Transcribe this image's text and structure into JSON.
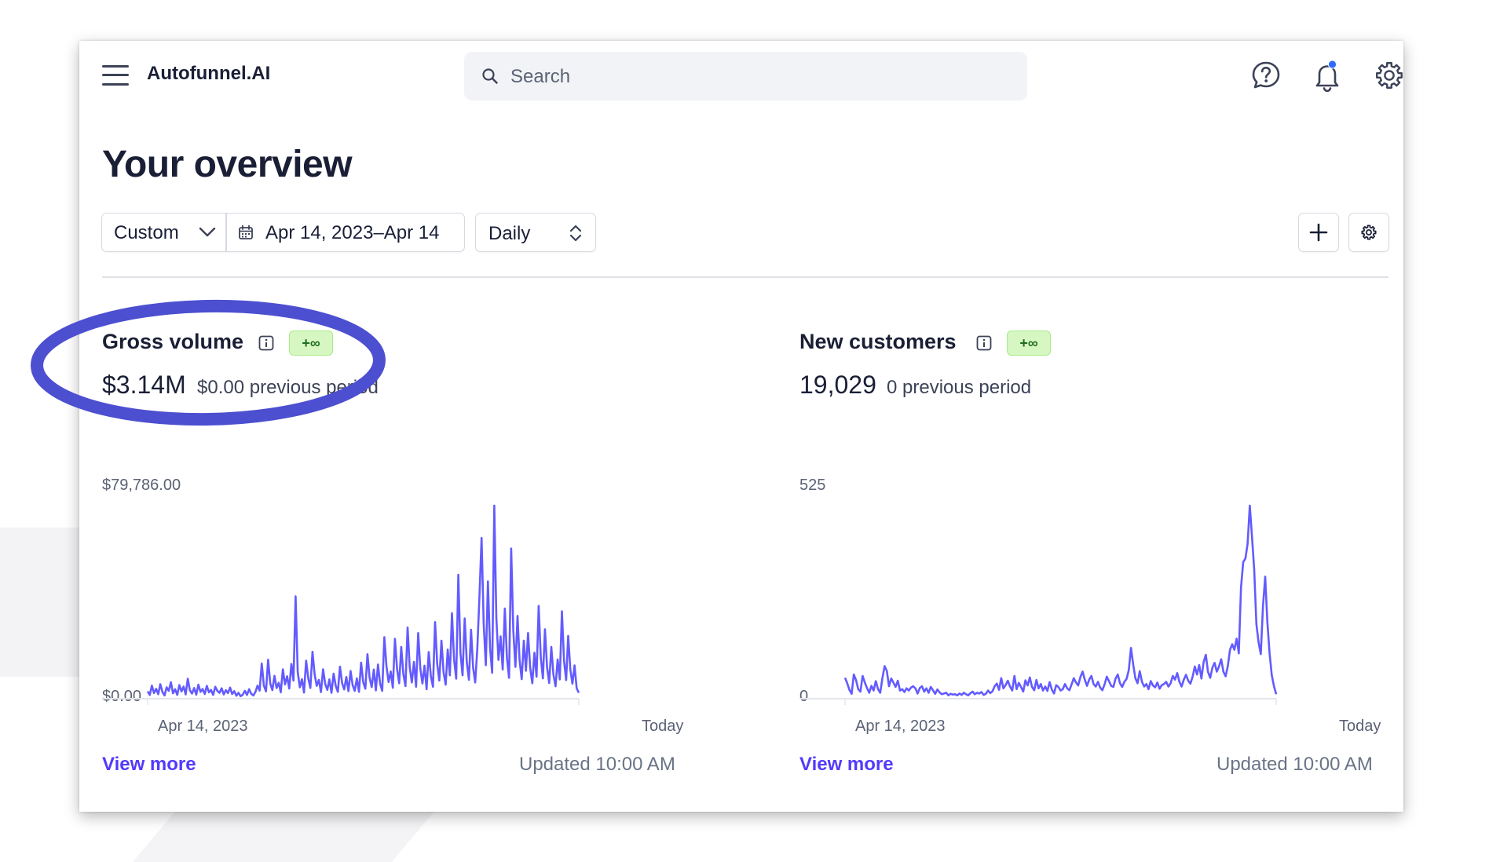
{
  "app": {
    "brand": "Autofunnel.AI"
  },
  "search": {
    "placeholder": "Search"
  },
  "page": {
    "title": "Your overview"
  },
  "filters": {
    "range_preset": "Custom",
    "date_range": "Apr 14, 2023–Apr 14",
    "interval": "Daily"
  },
  "header_icons": [
    "help-icon",
    "notification-bell-icon",
    "settings-gear-icon"
  ],
  "colors": {
    "accent": "#533afd",
    "line": "#635bff",
    "badge_bg": "#d7f7c2",
    "badge_text": "#216e1f",
    "annotation": "#4c4fd0"
  },
  "cards": [
    {
      "title": "Gross volume",
      "badge": "+∞",
      "value": "$3.14M",
      "previous": "$0.00 previous period",
      "y_max_label": "$79,786.00",
      "y_min_label": "$0.00",
      "x_start_label": "Apr 14, 2023",
      "x_end_label": "Today",
      "view_more": "View more",
      "updated": "Updated 10:00 AM"
    },
    {
      "title": "New customers",
      "badge": "+∞",
      "value": "19,029",
      "previous": "0 previous period",
      "y_max_label": "525",
      "y_min_label": "0",
      "x_start_label": "Apr 14, 2023",
      "x_end_label": "Today",
      "view_more": "View more",
      "updated": "Updated 10:00 AM"
    }
  ],
  "chart_data": [
    {
      "type": "line",
      "name": "Gross volume",
      "ylim": [
        0,
        79786
      ],
      "y": [
        2400,
        900,
        4800,
        1700,
        3500,
        1200,
        5400,
        2200,
        700,
        4100,
        2600,
        6200,
        1600,
        3300,
        900,
        5000,
        2400,
        4400,
        1100,
        7700,
        2800,
        1500,
        3800,
        1000,
        5200,
        2200,
        3400,
        1300,
        4700,
        2000,
        3000,
        900,
        4300,
        2600,
        1800,
        3700,
        1100,
        2900,
        1700,
        4000,
        1300,
        2500,
        600,
        1800,
        400,
        1000,
        2600,
        900,
        3300,
        1400,
        700,
        2200,
        4800,
        2700,
        14000,
        4800,
        2400,
        15600,
        5700,
        2900,
        8900,
        3800,
        6000,
        2000,
        11600,
        5300,
        8700,
        3600,
        13800,
        6900,
        42000,
        10500,
        4100,
        7500,
        1900,
        15200,
        7900,
        3800,
        18900,
        9600,
        4700,
        7200,
        2100,
        11600,
        5500,
        3000,
        7400,
        1800,
        9800,
        4700,
        2200,
        12700,
        5900,
        3200,
        8400,
        2500,
        10900,
        5000,
        2600,
        7800,
        2200,
        14400,
        6200,
        3500,
        17900,
        8100,
        4200,
        11500,
        2800,
        13600,
        5600,
        2600,
        25000,
        12900,
        6300,
        10700,
        3900,
        24300,
        11700,
        5800,
        20900,
        9600,
        4600,
        29000,
        12500,
        6100,
        14700,
        4300,
        26700,
        11900,
        5700,
        13100,
        3300,
        18800,
        8800,
        4300,
        31300,
        13900,
        6900,
        23500,
        10400,
        5200,
        19800,
        9100,
        35000,
        15600,
        7700,
        51000,
        18400,
        9100,
        32800,
        14500,
        7200,
        28100,
        12400,
        6100,
        20300,
        42000,
        66300,
        30600,
        13300,
        48200,
        20500,
        10100,
        80000,
        33100,
        15500,
        25300,
        11500,
        36900,
        16400,
        8000,
        61900,
        27700,
        12600,
        33800,
        15400,
        7500,
        23500,
        11000,
        26700,
        12200,
        5800,
        18500,
        8500,
        38000,
        16500,
        7800,
        28300,
        12400,
        5900,
        20900,
        9400,
        4500,
        15700,
        7400,
        35800,
        15200,
        7100,
        25500,
        11500,
        5600,
        13200,
        3700,
        1800
      ]
    },
    {
      "type": "line",
      "name": "New customers",
      "ylim": [
        0,
        525
      ],
      "y": [
        53,
        38,
        20,
        9,
        62,
        47,
        22,
        15,
        58,
        40,
        25,
        12,
        31,
        18,
        44,
        22,
        12,
        52,
        85,
        72,
        30,
        51,
        40,
        28,
        45,
        18,
        22,
        14,
        24,
        18,
        26,
        30,
        24,
        10,
        25,
        30,
        15,
        24,
        12,
        28,
        19,
        9,
        21,
        13,
        8,
        10,
        12,
        5,
        9,
        7,
        8,
        5,
        10,
        6,
        12,
        8,
        5,
        11,
        15,
        8,
        12,
        10,
        14,
        6,
        9,
        18,
        11,
        16,
        30,
        37,
        20,
        52,
        24,
        33,
        45,
        29,
        18,
        58,
        22,
        39,
        28,
        15,
        46,
        32,
        54,
        28,
        19,
        47,
        24,
        36,
        18,
        29,
        17,
        41,
        21,
        10,
        33,
        28,
        18,
        22,
        36,
        24,
        19,
        35,
        52,
        40,
        32,
        55,
        70,
        48,
        31,
        48,
        58,
        36,
        29,
        42,
        26,
        19,
        35,
        56,
        44,
        31,
        28,
        51,
        62,
        38,
        28,
        42,
        50,
        74,
        135,
        90,
        52,
        38,
        71,
        42,
        29,
        36,
        22,
        44,
        32,
        27,
        40,
        23,
        33,
        36,
        42,
        29,
        38,
        58,
        48,
        66,
        42,
        29,
        48,
        61,
        45,
        37,
        56,
        84,
        62,
        88,
        51,
        96,
        116,
        69,
        53,
        81,
        94,
        70,
        84,
        104,
        70,
        57,
        85,
        130,
        145,
        130,
        160,
        120,
        300,
        370,
        380,
        420,
        525,
        440,
        350,
        200,
        150,
        118,
        250,
        330,
        205,
        120,
        60,
        30,
        8
      ]
    }
  ]
}
